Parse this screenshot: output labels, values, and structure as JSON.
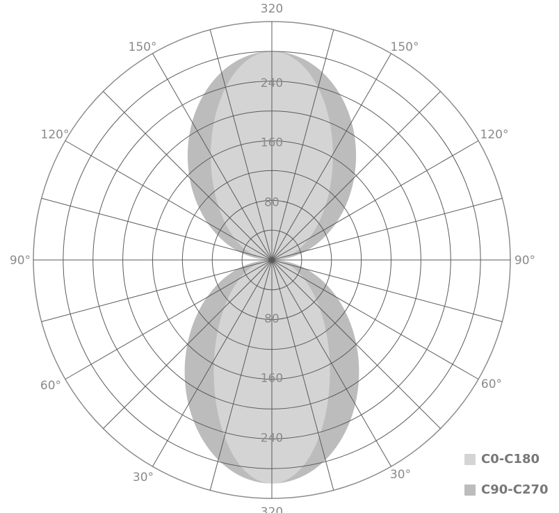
{
  "chart_data": {
    "type": "polar-area",
    "r_max": 320,
    "r_step": 40,
    "r_labels": [
      "80",
      "160",
      "240",
      "320"
    ],
    "angle_labels": [
      "90°",
      "120°",
      "150°",
      "60°",
      "30°"
    ],
    "grid": true,
    "legend_position": "bottom-right",
    "series": [
      {
        "name": "C0-C180",
        "color": "#d4d4d4",
        "lobes": [
          {
            "direction": "up",
            "peak": 280,
            "half_width": 82
          },
          {
            "direction": "down",
            "peak": 300,
            "half_width": 78
          }
        ]
      },
      {
        "name": "C90-C270",
        "color": "#bcbcbc",
        "lobes": [
          {
            "direction": "up",
            "peak": 280,
            "half_width": 113
          },
          {
            "direction": "down",
            "peak": 300,
            "half_width": 117
          }
        ]
      }
    ]
  }
}
